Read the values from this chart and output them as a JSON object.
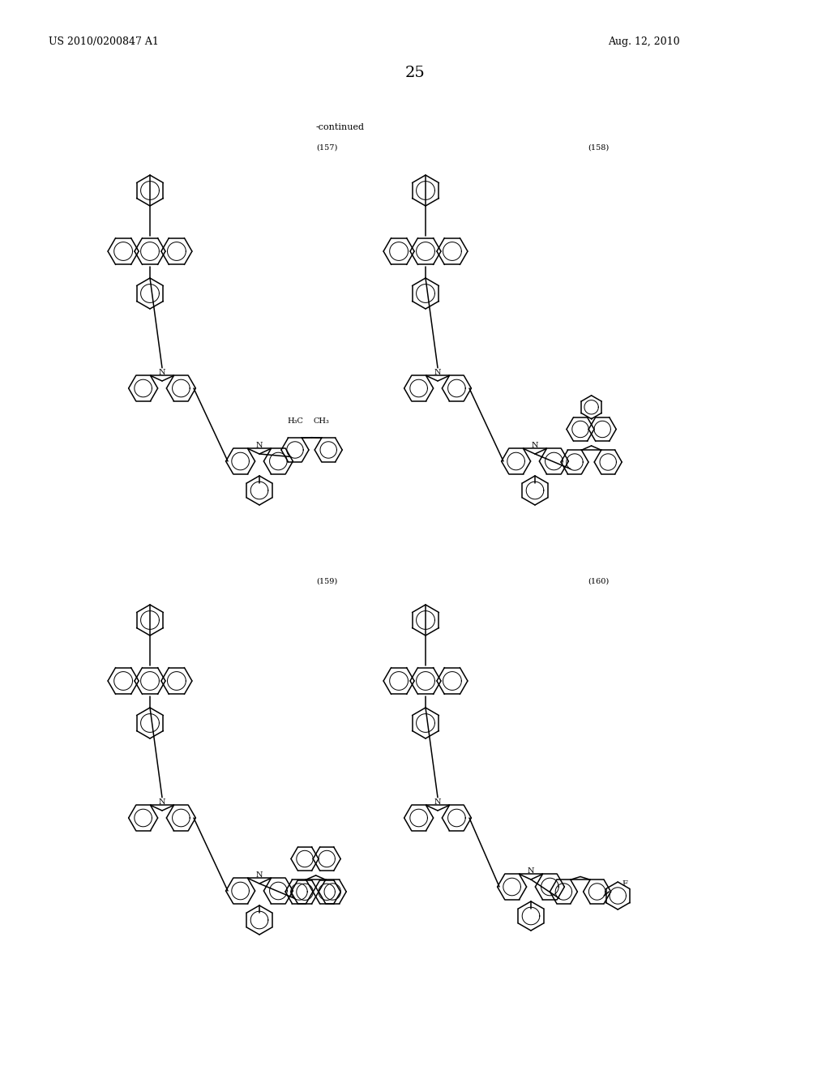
{
  "page_number": "25",
  "patent_number": "US 2010/0200847 A1",
  "date": "Aug. 12, 2010",
  "continued_label": "-continued",
  "compound_labels": [
    "(157)",
    "(158)",
    "(159)",
    "(160)"
  ],
  "background_color": "#ffffff",
  "line_color": "#000000",
  "text_color": "#000000",
  "font_size_header": 9,
  "font_size_page": 14,
  "font_size_label": 8
}
